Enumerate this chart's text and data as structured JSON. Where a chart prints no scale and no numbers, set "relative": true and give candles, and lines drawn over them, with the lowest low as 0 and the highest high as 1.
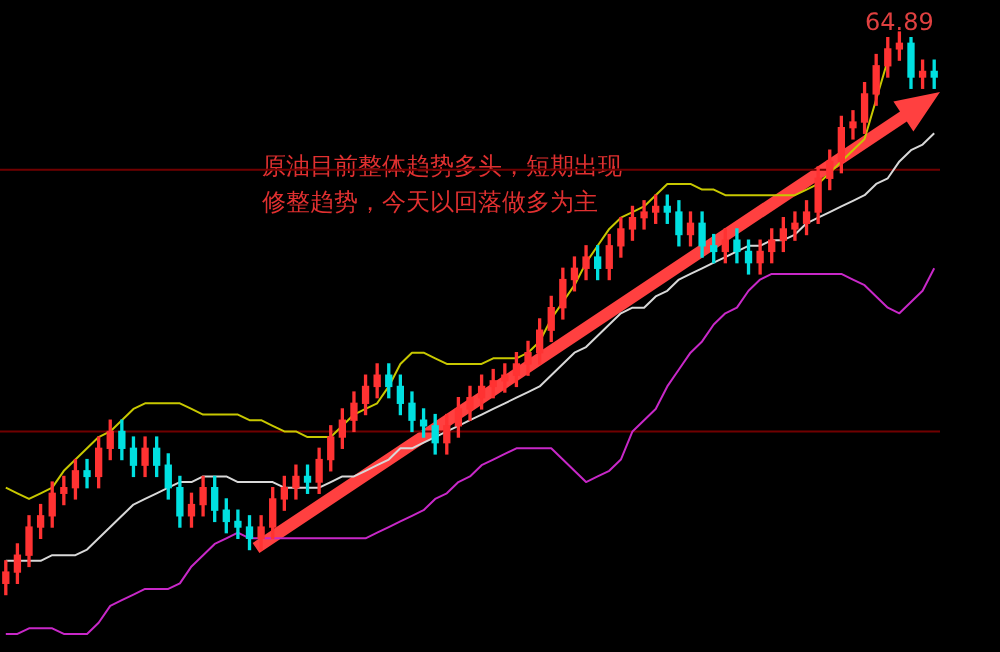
{
  "chart_data": {
    "type": "candlestick",
    "relative": true,
    "legend": false,
    "categories": [
      null,
      null,
      null,
      null,
      null,
      null,
      null,
      null,
      null,
      null,
      null,
      null,
      null,
      null,
      null,
      null,
      null,
      null,
      null,
      null,
      null,
      null,
      null,
      null,
      null,
      null,
      null,
      null,
      null,
      null,
      null,
      null,
      null,
      null,
      null,
      null,
      null,
      null,
      null,
      null,
      null,
      null,
      null,
      null,
      null,
      null,
      null,
      null,
      null,
      null,
      null,
      null,
      null,
      null,
      null,
      null,
      null,
      null,
      null,
      null,
      null,
      null,
      null,
      null,
      null,
      null,
      null,
      null,
      null,
      null,
      null,
      null,
      null,
      null,
      null,
      null,
      null,
      null,
      null,
      null,
      null
    ],
    "ohlc": [
      [
        0.02,
        0.06,
        0,
        0.04
      ],
      [
        0.04,
        0.09,
        0.02,
        0.07
      ],
      [
        0.07,
        0.14,
        0.05,
        0.12
      ],
      [
        0.12,
        0.16,
        0.1,
        0.14
      ],
      [
        0.14,
        0.2,
        0.12,
        0.18
      ],
      [
        0.18,
        0.21,
        0.16,
        0.19
      ],
      [
        0.19,
        0.24,
        0.17,
        0.22
      ],
      [
        0.22,
        0.24,
        0.19,
        0.21
      ],
      [
        0.21,
        0.28,
        0.19,
        0.26
      ],
      [
        0.26,
        0.31,
        0.24,
        0.29
      ],
      [
        0.29,
        0.31,
        0.24,
        0.26
      ],
      [
        0.26,
        0.28,
        0.21,
        0.23
      ],
      [
        0.23,
        0.28,
        0.21,
        0.26
      ],
      [
        0.26,
        0.28,
        0.21,
        0.23
      ],
      [
        0.23,
        0.25,
        0.17,
        0.19
      ],
      [
        0.19,
        0.21,
        0.12,
        0.14
      ],
      [
        0.14,
        0.18,
        0.12,
        0.16
      ],
      [
        0.16,
        0.21,
        0.14,
        0.19
      ],
      [
        0.19,
        0.21,
        0.13,
        0.15
      ],
      [
        0.15,
        0.17,
        0.11,
        0.13
      ],
      [
        0.13,
        0.15,
        0.1,
        0.12
      ],
      [
        0.12,
        0.14,
        0.08,
        0.1
      ],
      [
        0.1,
        0.14,
        0.08,
        0.12
      ],
      [
        0.12,
        0.19,
        0.1,
        0.17
      ],
      [
        0.17,
        0.21,
        0.15,
        0.19
      ],
      [
        0.19,
        0.23,
        0.17,
        0.21
      ],
      [
        0.21,
        0.23,
        0.18,
        0.2
      ],
      [
        0.2,
        0.26,
        0.18,
        0.24
      ],
      [
        0.24,
        0.3,
        0.22,
        0.28
      ],
      [
        0.28,
        0.33,
        0.26,
        0.31
      ],
      [
        0.31,
        0.36,
        0.29,
        0.34
      ],
      [
        0.34,
        0.39,
        0.32,
        0.37
      ],
      [
        0.37,
        0.41,
        0.35,
        0.39
      ],
      [
        0.39,
        0.41,
        0.35,
        0.37
      ],
      [
        0.37,
        0.39,
        0.32,
        0.34
      ],
      [
        0.34,
        0.36,
        0.29,
        0.31
      ],
      [
        0.31,
        0.33,
        0.28,
        0.3
      ],
      [
        0.3,
        0.32,
        0.25,
        0.27
      ],
      [
        0.27,
        0.32,
        0.25,
        0.3
      ],
      [
        0.3,
        0.35,
        0.28,
        0.33
      ],
      [
        0.33,
        0.37,
        0.31,
        0.35
      ],
      [
        0.35,
        0.39,
        0.33,
        0.37
      ],
      [
        0.37,
        0.4,
        0.35,
        0.38
      ],
      [
        0.38,
        0.41,
        0.36,
        0.39
      ],
      [
        0.39,
        0.43,
        0.37,
        0.41
      ],
      [
        0.41,
        0.45,
        0.39,
        0.43
      ],
      [
        0.43,
        0.49,
        0.41,
        0.47
      ],
      [
        0.47,
        0.53,
        0.45,
        0.51
      ],
      [
        0.51,
        0.58,
        0.49,
        0.56
      ],
      [
        0.56,
        0.6,
        0.54,
        0.58
      ],
      [
        0.58,
        0.62,
        0.56,
        0.6
      ],
      [
        0.6,
        0.62,
        0.56,
        0.58
      ],
      [
        0.58,
        0.64,
        0.56,
        0.62
      ],
      [
        0.62,
        0.67,
        0.6,
        0.65
      ],
      [
        0.65,
        0.69,
        0.63,
        0.67
      ],
      [
        0.67,
        0.7,
        0.65,
        0.68
      ],
      [
        0.68,
        0.71,
        0.66,
        0.69
      ],
      [
        0.69,
        0.71,
        0.66,
        0.68
      ],
      [
        0.68,
        0.7,
        0.62,
        0.64
      ],
      [
        0.64,
        0.68,
        0.62,
        0.66
      ],
      [
        0.66,
        0.68,
        0.6,
        0.62
      ],
      [
        0.62,
        0.64,
        0.59,
        0.61
      ],
      [
        0.61,
        0.65,
        0.59,
        0.63
      ],
      [
        0.63,
        0.65,
        0.59,
        0.61
      ],
      [
        0.61,
        0.63,
        0.57,
        0.59
      ],
      [
        0.59,
        0.63,
        0.57,
        0.61
      ],
      [
        0.61,
        0.65,
        0.59,
        0.63
      ],
      [
        0.63,
        0.67,
        0.61,
        0.65
      ],
      [
        0.65,
        0.68,
        0.63,
        0.66
      ],
      [
        0.66,
        0.7,
        0.64,
        0.68
      ],
      [
        0.68,
        0.76,
        0.66,
        0.74
      ],
      [
        0.74,
        0.79,
        0.72,
        0.77
      ],
      [
        0.77,
        0.85,
        0.75,
        0.83
      ],
      [
        0.83,
        0.86,
        0.81,
        0.84
      ],
      [
        0.84,
        0.91,
        0.82,
        0.89
      ],
      [
        0.89,
        0.96,
        0.87,
        0.94
      ],
      [
        0.94,
        0.99,
        0.92,
        0.97
      ],
      [
        0.97,
        1,
        0.95,
        0.98
      ],
      [
        0.98,
        0.99,
        0.9,
        0.92
      ],
      [
        0.92,
        0.95,
        0.9,
        0.93
      ],
      [
        0.93,
        0.95,
        0.9,
        0.92
      ]
    ],
    "colors": [
      "#ff3232",
      "#ff3232",
      "#ff3232",
      "#ff3232",
      "#ff3232",
      "#ff3232",
      "#ff3232",
      "#00e0e0",
      "#ff3232",
      "#ff3232",
      "#00e0e0",
      "#00e0e0",
      "#ff3232",
      "#00e0e0",
      "#00e0e0",
      "#00e0e0",
      "#ff3232",
      "#ff3232",
      "#00e0e0",
      "#00e0e0",
      "#00e0e0",
      "#00e0e0",
      "#ff3232",
      "#ff3232",
      "#ff3232",
      "#ff3232",
      "#00e0e0",
      "#ff3232",
      "#ff3232",
      "#ff3232",
      "#ff3232",
      "#ff3232",
      "#ff3232",
      "#00e0e0",
      "#00e0e0",
      "#00e0e0",
      "#00e0e0",
      "#00e0e0",
      "#ff3232",
      "#ff3232",
      "#ff3232",
      "#ff3232",
      "#ff3232",
      "#ff3232",
      "#ff3232",
      "#ff3232",
      "#ff3232",
      "#ff3232",
      "#ff3232",
      "#ff3232",
      "#ff3232",
      "#00e0e0",
      "#ff3232",
      "#ff3232",
      "#ff3232",
      "#ff3232",
      "#ff3232",
      "#00e0e0",
      "#00e0e0",
      "#ff3232",
      "#00e0e0",
      "#00e0e0",
      "#ff3232",
      "#00e0e0",
      "#00e0e0",
      "#ff3232",
      "#ff3232",
      "#ff3232",
      "#ff3232",
      "#ff3232",
      "#ff3232",
      "#ff3232",
      "#ff3232",
      "#ff3232",
      "#ff3232",
      "#ff3232",
      "#ff3232",
      "#ff3232",
      "#00e0e0",
      "#ff3232",
      "#00e0e0"
    ],
    "series": [
      {
        "type": "line",
        "color": "#c8c800",
        "values": [
          0.19,
          0.18,
          0.17,
          0.18,
          0.19,
          0.22,
          0.24,
          0.26,
          0.28,
          0.29,
          0.31,
          0.33,
          0.34,
          0.34,
          0.34,
          0.34,
          0.33,
          0.32,
          0.32,
          0.32,
          0.32,
          0.31,
          0.31,
          0.3,
          0.29,
          0.29,
          0.28,
          0.28,
          0.28,
          0.3,
          0.32,
          0.33,
          0.34,
          0.37,
          0.41,
          0.43,
          0.43,
          0.42,
          0.41,
          0.41,
          0.41,
          0.41,
          0.42,
          0.42,
          0.42,
          0.43,
          0.45,
          0.49,
          0.52,
          0.55,
          0.59,
          0.62,
          0.65,
          0.67,
          0.68,
          0.69,
          0.71,
          0.73,
          0.73,
          0.73,
          0.72,
          0.72,
          0.71,
          0.71,
          0.71,
          0.71,
          0.71,
          0.71,
          0.71,
          0.72,
          0.73,
          0.75,
          0.77,
          0.79,
          0.81,
          0.88,
          0.95,
          null,
          null,
          null,
          null
        ]
      },
      {
        "type": "line",
        "color": "#d8d8d8",
        "values": [
          0.06,
          0.06,
          0.06,
          0.06,
          0.07,
          0.07,
          0.07,
          0.08,
          0.1,
          0.12,
          0.14,
          0.16,
          0.17,
          0.18,
          0.19,
          0.2,
          0.2,
          0.21,
          0.21,
          0.21,
          0.2,
          0.2,
          0.2,
          0.2,
          0.19,
          0.19,
          0.19,
          0.19,
          0.2,
          0.21,
          0.21,
          0.22,
          0.23,
          0.24,
          0.26,
          0.26,
          0.27,
          0.28,
          0.29,
          0.3,
          0.31,
          0.32,
          0.33,
          0.34,
          0.35,
          0.36,
          0.37,
          0.39,
          0.41,
          0.43,
          0.44,
          0.46,
          0.48,
          0.5,
          0.51,
          0.51,
          0.53,
          0.54,
          0.56,
          0.57,
          0.58,
          0.59,
          0.6,
          0.61,
          0.62,
          0.62,
          0.63,
          0.63,
          0.64,
          0.66,
          0.67,
          0.68,
          0.69,
          0.7,
          0.71,
          0.73,
          0.74,
          0.77,
          0.79,
          0.8,
          0.82
        ]
      },
      {
        "type": "line",
        "color": "#c828c8",
        "values": [
          -0.07,
          -0.07,
          -0.06,
          -0.06,
          -0.06,
          -0.07,
          -0.07,
          -0.07,
          -0.05,
          -0.02,
          -0.01,
          0.0,
          0.01,
          0.01,
          0.01,
          0.02,
          0.05,
          0.07,
          0.09,
          0.1,
          0.11,
          0.1,
          0.1,
          0.1,
          0.1,
          0.1,
          0.1,
          0.1,
          0.1,
          0.1,
          0.1,
          0.1,
          0.11,
          0.12,
          0.13,
          0.14,
          0.15,
          0.17,
          0.18,
          0.2,
          0.21,
          0.23,
          0.24,
          0.25,
          0.26,
          0.26,
          0.26,
          0.26,
          0.24,
          0.22,
          0.2,
          0.21,
          0.22,
          0.24,
          0.29,
          0.31,
          0.33,
          0.37,
          0.4,
          0.43,
          0.45,
          0.48,
          0.5,
          0.51,
          0.54,
          0.56,
          0.57,
          0.57,
          0.57,
          0.57,
          0.57,
          0.57,
          0.57,
          0.56,
          0.55,
          0.53,
          0.51,
          0.5,
          0.52,
          0.54,
          0.58
        ]
      }
    ],
    "ref_lines": [
      {
        "axis": "y",
        "value": 0.755,
        "color": "#700000"
      },
      {
        "axis": "y",
        "value": 0.29,
        "color": "#700000"
      }
    ],
    "annotations": [
      "原油目前整体趋势多头，短期出现修整趋势，今天以回落做多为主",
      {
        "text": "64.89",
        "y": 1
      }
    ]
  }
}
